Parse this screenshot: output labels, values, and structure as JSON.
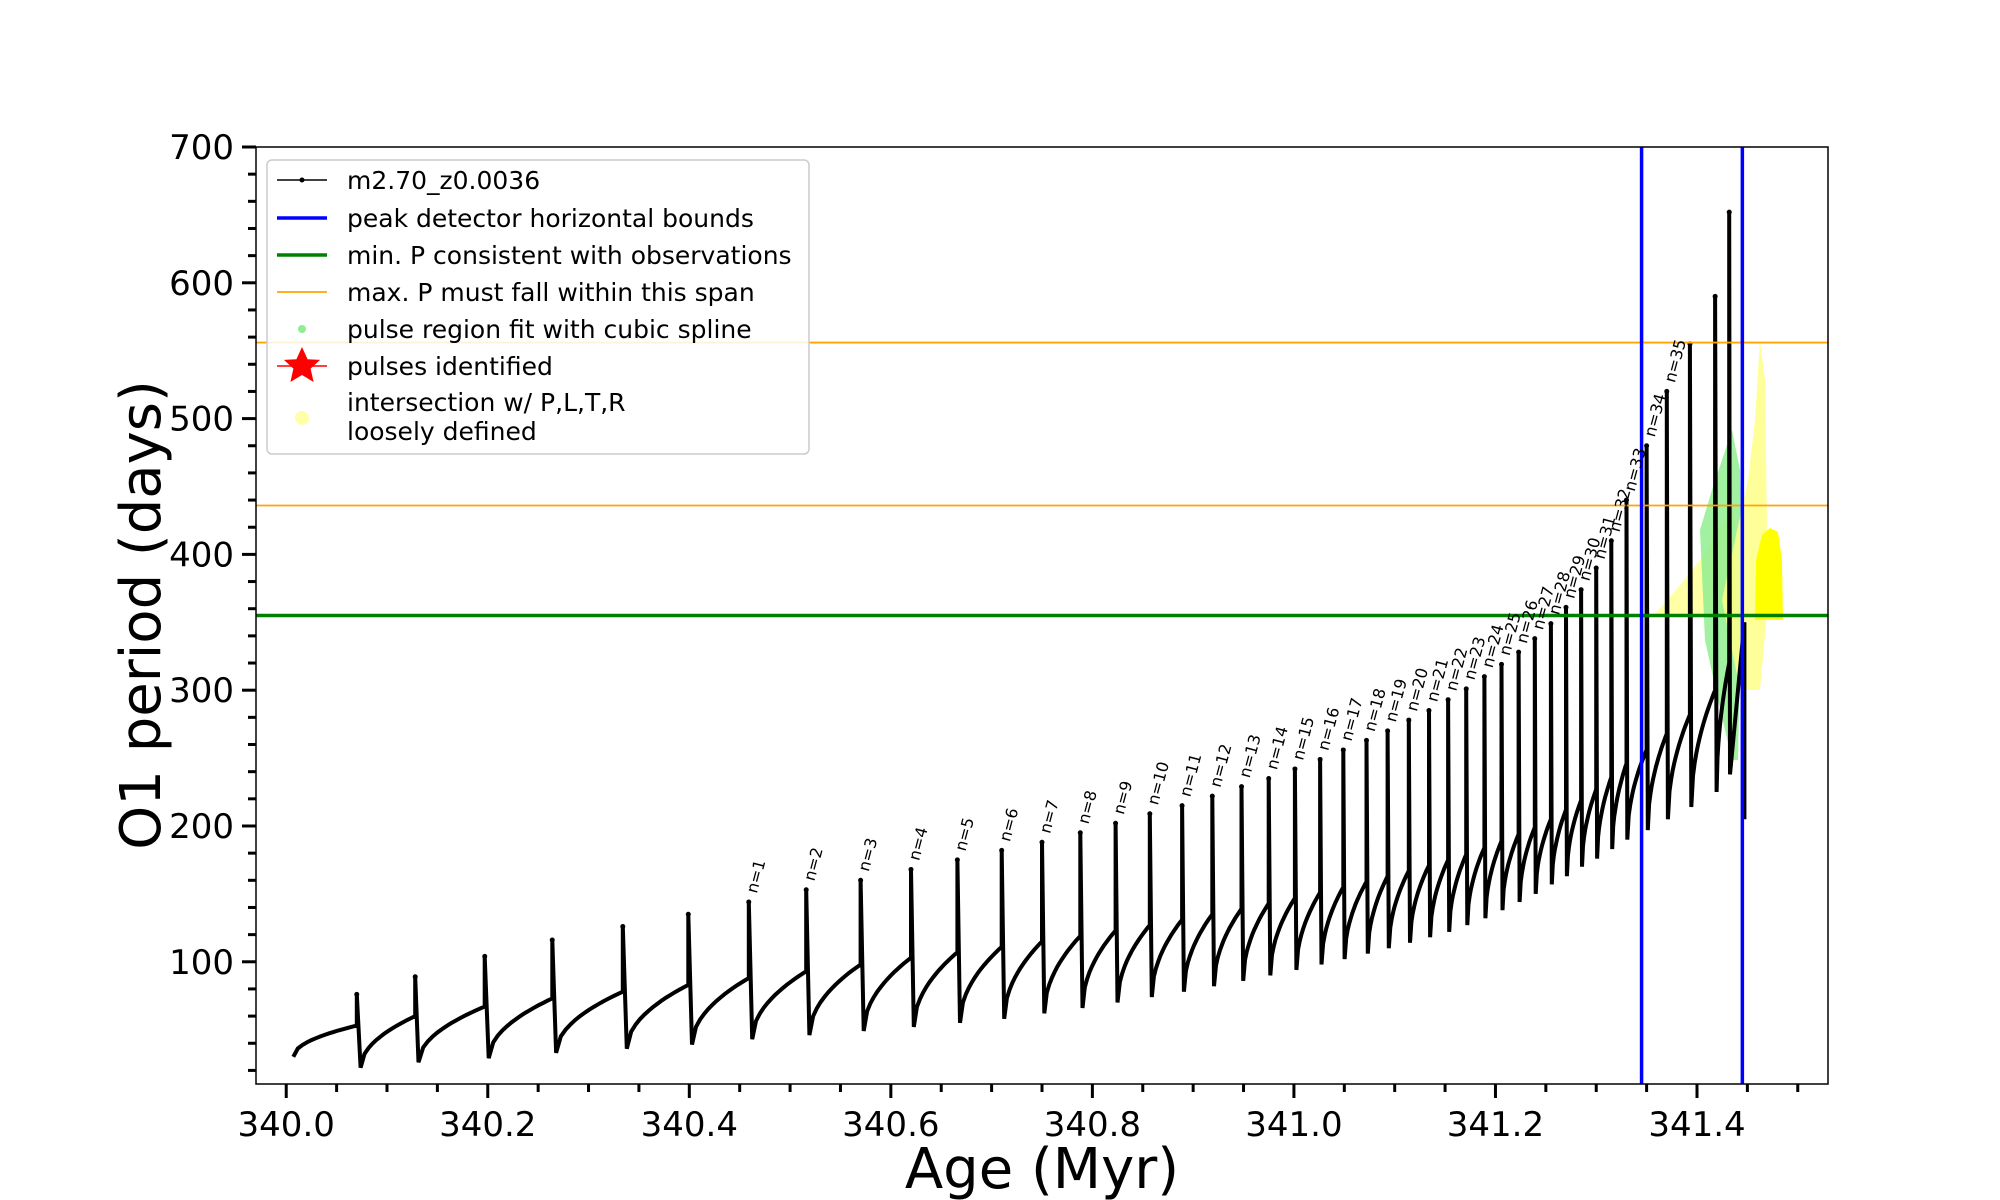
{
  "chart_data": {
    "type": "line",
    "title": "",
    "xlabel": "Age (Myr)",
    "ylabel": "O1 period (days)",
    "xlim": [
      339.97,
      341.53
    ],
    "ylim": [
      10,
      700
    ],
    "x_ticks": [
      340.0,
      340.2,
      340.4,
      340.6,
      340.8,
      341.0,
      341.2,
      341.4
    ],
    "x_tick_labels": [
      "340.0",
      "340.2",
      "340.4",
      "340.6",
      "340.8",
      "341.0",
      "341.2",
      "341.4"
    ],
    "y_ticks": [
      100,
      200,
      300,
      400,
      500,
      600,
      700
    ],
    "y_tick_labels": [
      "100",
      "200",
      "300",
      "400",
      "500",
      "600",
      "700"
    ],
    "grid": false,
    "legend_position": "top-left",
    "legend": [
      {
        "label": "m2.70_z0.0036",
        "color": "#000000",
        "kind": "line-marker"
      },
      {
        "label": "peak detector horizontal bounds",
        "color": "#0000ff",
        "kind": "line"
      },
      {
        "label": "min. P consistent with observations",
        "color": "#008000",
        "kind": "line"
      },
      {
        "label": "max. P must fall within this span",
        "color": "#ffa500",
        "kind": "thin-line"
      },
      {
        "label": "pulse region fit with cubic spline",
        "color": "#90ee90",
        "kind": "dot"
      },
      {
        "label": "pulses identified",
        "color": "#ff0000",
        "kind": "star"
      },
      {
        "label_lines": [
          "intersection w/ P,L,T,R",
          "loosely defined"
        ],
        "color": "#ffffaa",
        "kind": "dot"
      }
    ],
    "vertical_lines": [
      {
        "x": 341.345,
        "color": "#0000ff",
        "role": "peak detector horizontal bounds"
      },
      {
        "x": 341.445,
        "color": "#0000ff",
        "role": "peak detector horizontal bounds"
      }
    ],
    "horizontal_lines": [
      {
        "y": 355,
        "color": "#008000",
        "role": "min. P consistent with observations"
      },
      {
        "y": 436,
        "color": "#ffa500",
        "role": "max. P lower bound"
      },
      {
        "y": 556,
        "color": "#ffa500",
        "role": "max. P upper bound"
      }
    ],
    "pulses": [
      {
        "x": 340.07,
        "peak": 76,
        "pre": 53,
        "min": 22,
        "label": ""
      },
      {
        "x": 340.128,
        "peak": 89,
        "pre": 60,
        "min": 26,
        "label": ""
      },
      {
        "x": 340.197,
        "peak": 104,
        "pre": 67,
        "min": 29,
        "label": ""
      },
      {
        "x": 340.264,
        "peak": 116,
        "pre": 73,
        "min": 33,
        "label": ""
      },
      {
        "x": 340.334,
        "peak": 126,
        "pre": 78,
        "min": 36,
        "label": ""
      },
      {
        "x": 340.399,
        "peak": 135,
        "pre": 83,
        "min": 39,
        "label": ""
      },
      {
        "x": 340.459,
        "peak": 144,
        "pre": 88,
        "min": 43,
        "label": "n=1"
      },
      {
        "x": 340.516,
        "peak": 153,
        "pre": 93,
        "min": 46,
        "label": "n=2"
      },
      {
        "x": 340.57,
        "peak": 160,
        "pre": 98,
        "min": 49,
        "label": "n=3"
      },
      {
        "x": 340.62,
        "peak": 168,
        "pre": 103,
        "min": 52,
        "label": "n=4"
      },
      {
        "x": 340.666,
        "peak": 175,
        "pre": 107,
        "min": 55,
        "label": "n=5"
      },
      {
        "x": 340.71,
        "peak": 182,
        "pre": 111,
        "min": 58,
        "label": "n=6"
      },
      {
        "x": 340.75,
        "peak": 188,
        "pre": 115,
        "min": 62,
        "label": "n=7"
      },
      {
        "x": 340.788,
        "peak": 195,
        "pre": 119,
        "min": 66,
        "label": "n=8"
      },
      {
        "x": 340.823,
        "peak": 202,
        "pre": 123,
        "min": 70,
        "label": "n=9"
      },
      {
        "x": 340.857,
        "peak": 209,
        "pre": 127,
        "min": 74,
        "label": "n=10"
      },
      {
        "x": 340.889,
        "peak": 215,
        "pre": 131,
        "min": 78,
        "label": "n=11"
      },
      {
        "x": 340.919,
        "peak": 222,
        "pre": 135,
        "min": 82,
        "label": "n=12"
      },
      {
        "x": 340.948,
        "peak": 229,
        "pre": 139,
        "min": 86,
        "label": "n=13"
      },
      {
        "x": 340.975,
        "peak": 235,
        "pre": 143,
        "min": 90,
        "label": "n=14"
      },
      {
        "x": 341.001,
        "peak": 242,
        "pre": 147,
        "min": 94,
        "label": "n=15"
      },
      {
        "x": 341.026,
        "peak": 249,
        "pre": 151,
        "min": 98,
        "label": "n=16"
      },
      {
        "x": 341.049,
        "peak": 256,
        "pre": 155,
        "min": 102,
        "label": "n=17"
      },
      {
        "x": 341.072,
        "peak": 263,
        "pre": 159,
        "min": 106,
        "label": "n=18"
      },
      {
        "x": 341.093,
        "peak": 270,
        "pre": 163,
        "min": 110,
        "label": "n=19"
      },
      {
        "x": 341.114,
        "peak": 278,
        "pre": 167,
        "min": 114,
        "label": "n=20"
      },
      {
        "x": 341.134,
        "peak": 285,
        "pre": 171,
        "min": 118,
        "label": "n=21"
      },
      {
        "x": 341.153,
        "peak": 293,
        "pre": 175,
        "min": 122,
        "label": "n=22"
      },
      {
        "x": 341.171,
        "peak": 301,
        "pre": 179,
        "min": 127,
        "label": "n=23"
      },
      {
        "x": 341.189,
        "peak": 310,
        "pre": 184,
        "min": 132,
        "label": "n=24"
      },
      {
        "x": 341.206,
        "peak": 319,
        "pre": 189,
        "min": 138,
        "label": "n=25"
      },
      {
        "x": 341.223,
        "peak": 328,
        "pre": 194,
        "min": 144,
        "label": "n=26"
      },
      {
        "x": 341.239,
        "peak": 338,
        "pre": 199,
        "min": 150,
        "label": "n=27"
      },
      {
        "x": 341.255,
        "peak": 349,
        "pre": 205,
        "min": 157,
        "label": "n=28"
      },
      {
        "x": 341.27,
        "peak": 361,
        "pre": 212,
        "min": 163,
        "label": "n=29"
      },
      {
        "x": 341.285,
        "peak": 374,
        "pre": 219,
        "min": 170,
        "label": "n=30"
      },
      {
        "x": 341.3,
        "peak": 390,
        "pre": 227,
        "min": 176,
        "label": "n=31"
      },
      {
        "x": 341.315,
        "peak": 410,
        "pre": 236,
        "min": 183,
        "label": "n=32"
      },
      {
        "x": 341.33,
        "peak": 440,
        "pre": 246,
        "min": 190,
        "label": "n=33"
      },
      {
        "x": 341.35,
        "peak": 480,
        "pre": 256,
        "min": 197,
        "label": "n=34"
      },
      {
        "x": 341.37,
        "peak": 520,
        "pre": 268,
        "min": 205,
        "label": "n=35"
      },
      {
        "x": 341.393,
        "peak": 555,
        "pre": 282,
        "min": 214,
        "label": ""
      },
      {
        "x": 341.418,
        "peak": 590,
        "pre": 300,
        "min": 225,
        "label": ""
      },
      {
        "x": 341.432,
        "peak": 652,
        "pre": 320,
        "min": 238,
        "label": ""
      }
    ],
    "series_start": {
      "x": 340.007,
      "y": 30
    },
    "series_end": {
      "x": 341.447,
      "y": 205
    }
  }
}
